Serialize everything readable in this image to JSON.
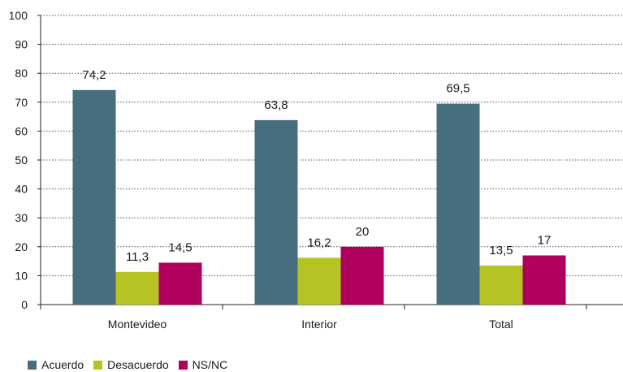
{
  "chart_data": {
    "type": "bar",
    "categories": [
      "Montevideo",
      "Interior",
      "Total"
    ],
    "series": [
      {
        "name": "Acuerdo",
        "values": [
          74.2,
          63.8,
          69.5
        ],
        "labels": [
          "74,2",
          "63,8",
          "69,5"
        ],
        "color": "#476e7f"
      },
      {
        "name": "Desacuerdo",
        "values": [
          11.3,
          16.2,
          13.5
        ],
        "labels": [
          "11,3",
          "16,2",
          "13,5"
        ],
        "color": "#b5c424"
      },
      {
        "name": "NS/NC",
        "values": [
          14.5,
          20,
          17
        ],
        "labels": [
          "14,5",
          "20",
          "17"
        ],
        "color": "#b0005e"
      }
    ],
    "ylim": [
      0,
      100
    ],
    "yticks": [
      0,
      10,
      20,
      30,
      40,
      50,
      60,
      70,
      80,
      90,
      100
    ],
    "grid": true,
    "legend_position": "bottom-left",
    "title": "",
    "xlabel": "",
    "ylabel": ""
  }
}
